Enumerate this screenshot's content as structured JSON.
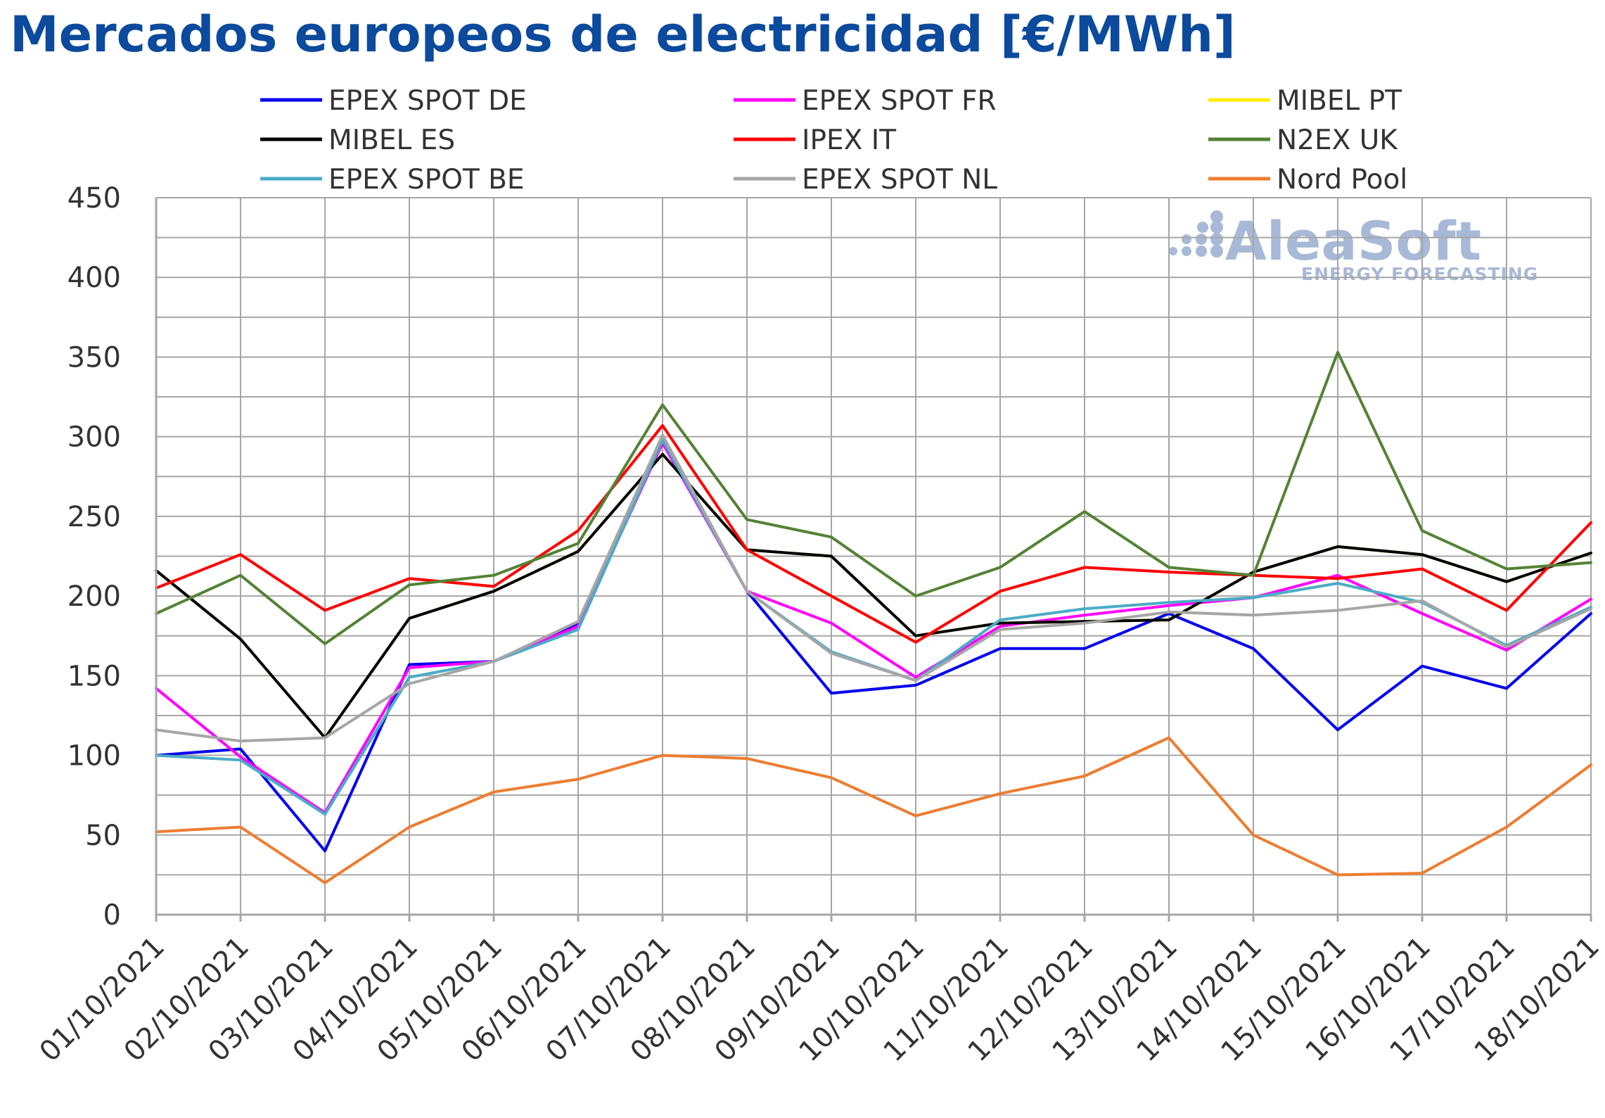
{
  "title": "Mercados europeos de electricidad [€/MWh]",
  "watermark": {
    "brand": "AleaSoft",
    "tagline": "ENERGY FORECASTING",
    "color": "#a7b9d6"
  },
  "chart_data": {
    "type": "line",
    "title": "Mercados europeos de electricidad [€/MWh]",
    "xlabel": "",
    "ylabel": "",
    "ylim": [
      0,
      450
    ],
    "yticks": [
      0,
      50,
      100,
      150,
      200,
      250,
      300,
      350,
      400,
      450
    ],
    "grid": true,
    "legend_position": "top",
    "categories": [
      "01/10/2021",
      "02/10/2021",
      "03/10/2021",
      "04/10/2021",
      "05/10/2021",
      "06/10/2021",
      "07/10/2021",
      "08/10/2021",
      "09/10/2021",
      "10/10/2021",
      "11/10/2021",
      "12/10/2021",
      "13/10/2021",
      "14/10/2021",
      "15/10/2021",
      "16/10/2021",
      "17/10/2021",
      "18/10/2021"
    ],
    "series": [
      {
        "name": "EPEX SPOT DE",
        "color": "#0000ee",
        "values": [
          100,
          104,
          40,
          157,
          159,
          183,
          298,
          203,
          139,
          144,
          167,
          167,
          189,
          167,
          116,
          156,
          142,
          189
        ]
      },
      {
        "name": "EPEX SPOT FR",
        "color": "#ff00ff",
        "values": [
          142,
          99,
          64,
          155,
          159,
          181,
          296,
          203,
          183,
          149,
          181,
          188,
          194,
          199,
          213,
          189,
          166,
          198
        ]
      },
      {
        "name": "MIBEL PT",
        "color": "#ffee00",
        "values": [
          216,
          173,
          111,
          186,
          203,
          228,
          289,
          229,
          225,
          175,
          183,
          184,
          185,
          215,
          231,
          226,
          209,
          227
        ]
      },
      {
        "name": "MIBEL ES",
        "color": "#000000",
        "values": [
          216,
          173,
          111,
          186,
          203,
          228,
          289,
          229,
          225,
          175,
          183,
          184,
          185,
          215,
          231,
          226,
          209,
          227
        ]
      },
      {
        "name": "IPEX IT",
        "color": "#ff0000",
        "values": [
          205,
          226,
          191,
          211,
          206,
          241,
          307,
          229,
          200,
          171,
          203,
          218,
          215,
          213,
          211,
          217,
          191,
          246
        ]
      },
      {
        "name": "N2EX UK",
        "color": "#548235",
        "values": [
          189,
          213,
          170,
          207,
          213,
          233,
          320,
          248,
          237,
          200,
          218,
          253,
          218,
          213,
          353,
          241,
          217,
          221
        ]
      },
      {
        "name": "EPEX SPOT BE",
        "color": "#4bacc6",
        "values": [
          100,
          97,
          63,
          149,
          159,
          179,
          298,
          203,
          165,
          147,
          185,
          192,
          196,
          199,
          208,
          196,
          169,
          193
        ]
      },
      {
        "name": "EPEX SPOT NL",
        "color": "#a6a6a6",
        "values": [
          116,
          109,
          111,
          145,
          159,
          184,
          301,
          203,
          164,
          147,
          179,
          183,
          190,
          188,
          191,
          197,
          168,
          192
        ]
      },
      {
        "name": "Nord Pool",
        "color": "#ed7d31",
        "values": [
          52,
          55,
          20,
          55,
          77,
          85,
          100,
          98,
          86,
          62,
          76,
          87,
          111,
          50,
          25,
          26,
          55,
          94
        ]
      }
    ]
  }
}
